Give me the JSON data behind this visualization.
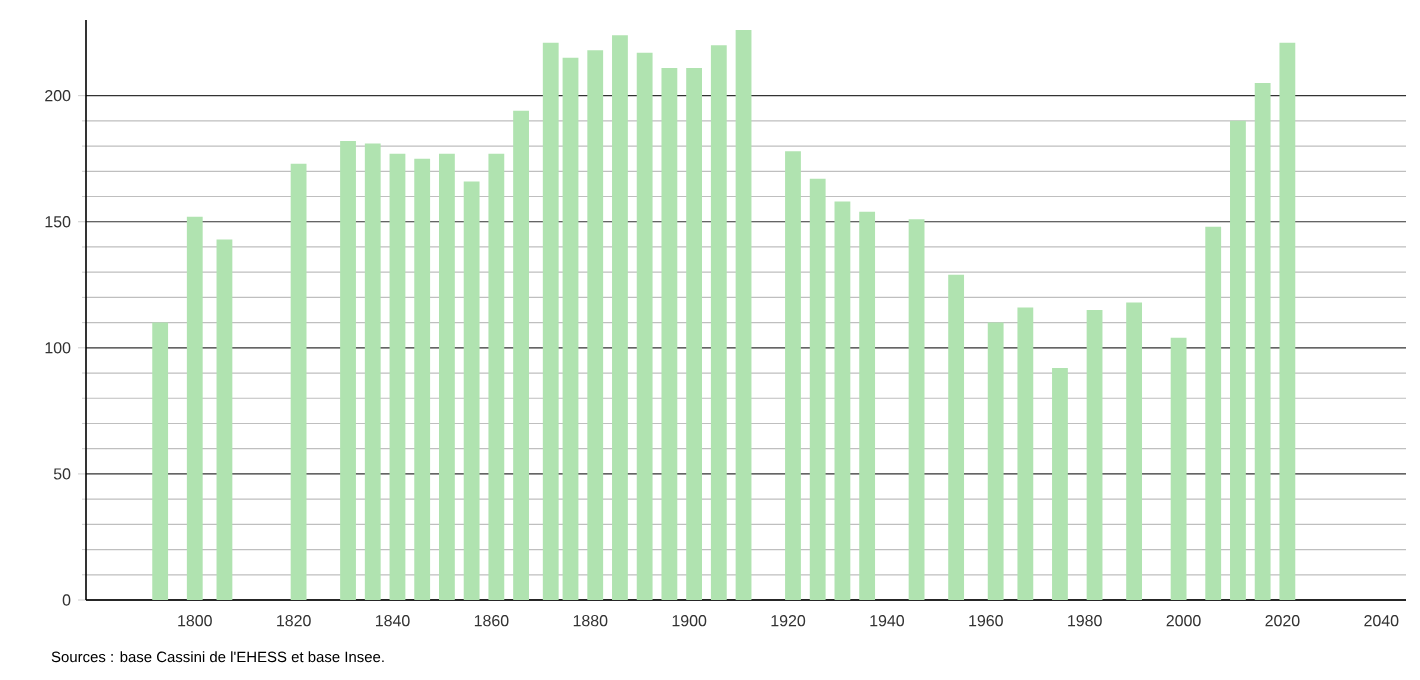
{
  "chart_data": {
    "type": "bar",
    "x": [
      1793,
      1800,
      1806,
      1821,
      1831,
      1836,
      1841,
      1846,
      1851,
      1856,
      1861,
      1866,
      1872,
      1876,
      1881,
      1886,
      1891,
      1896,
      1901,
      1906,
      1911,
      1921,
      1926,
      1931,
      1936,
      1946,
      1954,
      1962,
      1968,
      1975,
      1982,
      1990,
      1999,
      2006,
      2011,
      2016,
      2021
    ],
    "values": [
      110,
      152,
      143,
      173,
      182,
      181,
      177,
      175,
      177,
      166,
      177,
      194,
      221,
      215,
      218,
      224,
      217,
      211,
      211,
      220,
      226,
      178,
      167,
      158,
      154,
      151,
      129,
      110,
      116,
      92,
      115,
      118,
      104,
      148,
      190,
      205,
      221
    ],
    "color": "#b0e3b0",
    "xlim": [
      1778,
      2045
    ],
    "ylim": [
      0,
      230
    ],
    "xticks": [
      1800,
      1820,
      1840,
      1860,
      1880,
      1900,
      1920,
      1940,
      1960,
      1980,
      2000,
      2020,
      2040
    ],
    "yticks": [
      0,
      50,
      100,
      150,
      200
    ],
    "grid": "y",
    "annotations": [
      "Sources : base Cassini de l'EHESS et base Insee."
    ]
  }
}
